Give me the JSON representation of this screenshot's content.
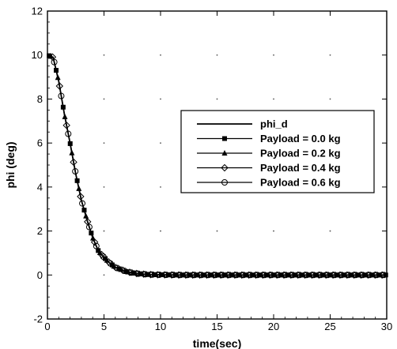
{
  "chart_data": {
    "type": "line",
    "title": "",
    "xlabel": "time(sec)",
    "ylabel": "phi (deg)",
    "xlim": [
      0,
      30
    ],
    "ylim": [
      -2,
      12
    ],
    "xticks": [
      0,
      5,
      10,
      15,
      20,
      25,
      30
    ],
    "yticks": [
      -2,
      0,
      2,
      4,
      6,
      8,
      10,
      12
    ],
    "grid": "sparse dots",
    "legend_position": "center-right",
    "colors": {
      "line": "#000000",
      "background": "#ffffff"
    },
    "x": [
      0,
      0.5,
      1,
      1.5,
      2,
      2.5,
      3,
      3.5,
      4,
      4.5,
      5,
      5.5,
      6,
      6.5,
      7,
      7.5,
      8,
      9,
      10,
      12,
      15,
      20,
      25,
      30
    ],
    "series": [
      {
        "name": "phi_d",
        "marker": "none",
        "values": [
          10,
          9.9,
          8.8,
          7.3,
          6.0,
          4.6,
          3.4,
          2.5,
          1.7,
          1.1,
          0.8,
          0.55,
          0.35,
          0.25,
          0.15,
          0.1,
          0.06,
          0.02,
          0.01,
          0,
          0,
          0,
          0,
          0
        ]
      },
      {
        "name": "Payload = 0.0 kg",
        "marker": "square",
        "values": [
          10,
          9.9,
          8.8,
          7.3,
          6.0,
          4.6,
          3.4,
          2.5,
          1.7,
          1.1,
          0.8,
          0.55,
          0.35,
          0.25,
          0.15,
          0.1,
          0.06,
          0.02,
          0.01,
          0,
          0,
          0,
          0,
          0
        ]
      },
      {
        "name": "Payload = 0.2 kg",
        "marker": "triangle",
        "values": [
          10,
          9.9,
          8.8,
          7.3,
          6.0,
          4.6,
          3.4,
          2.5,
          1.7,
          1.1,
          0.8,
          0.55,
          0.35,
          0.25,
          0.15,
          0.1,
          0.06,
          0.02,
          0.01,
          0,
          0,
          0,
          0,
          0
        ]
      },
      {
        "name": "Payload = 0.4 kg",
        "marker": "diamond",
        "values": [
          10,
          9.9,
          8.8,
          7.3,
          6.0,
          4.6,
          3.4,
          2.5,
          1.7,
          1.1,
          0.8,
          0.55,
          0.35,
          0.25,
          0.15,
          0.1,
          0.06,
          0.02,
          0.01,
          0,
          0,
          0,
          0,
          0
        ]
      },
      {
        "name": "Payload = 0.6 kg",
        "marker": "circle",
        "values": [
          10,
          9.9,
          8.8,
          7.3,
          6.0,
          4.6,
          3.4,
          2.5,
          1.7,
          1.1,
          0.8,
          0.55,
          0.35,
          0.25,
          0.15,
          0.1,
          0.06,
          0.02,
          0.01,
          0,
          0,
          0,
          0,
          0
        ]
      }
    ]
  }
}
